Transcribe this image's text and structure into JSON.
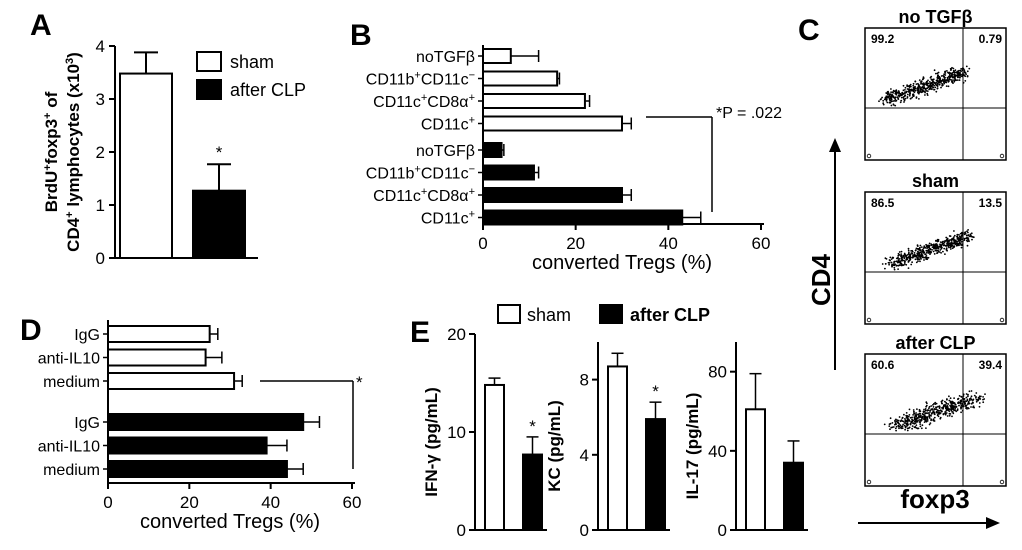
{
  "chart_data": [
    {
      "panel": "A",
      "type": "bar",
      "categories": [
        "sham",
        "after CLP"
      ],
      "values": [
        3.48,
        1.27
      ],
      "errors": [
        0.4,
        0.5
      ],
      "ylabel_line1": "BrdU+foxp3+ of",
      "ylabel_line2": "CD4+ lymphocytes (x10³)",
      "ylim": [
        0,
        4
      ],
      "yticks": [
        "0",
        "1",
        "2",
        "3",
        "4"
      ],
      "significance": "*",
      "legend": [
        "sham",
        "after CLP"
      ],
      "legend_position": "top-right",
      "colors": [
        "#ffffff",
        "#000000"
      ]
    },
    {
      "panel": "B",
      "type": "bar",
      "orientation": "horizontal",
      "categories": [
        "noTGFβ",
        "CD11b+CD11c−",
        "CD11c+CD8α+",
        "CD11c+"
      ],
      "series": [
        {
          "name": "sham",
          "values": [
            6,
            16,
            22,
            30
          ],
          "errors": [
            6,
            0.5,
            1,
            2
          ]
        },
        {
          "name": "after CLP",
          "values": [
            4,
            11,
            30,
            43
          ],
          "errors": [
            0.5,
            1,
            2,
            4
          ]
        }
      ],
      "xlabel": "converted Tregs (%)",
      "xlim": [
        0,
        60
      ],
      "xticks": [
        "0",
        "20",
        "40",
        "60"
      ],
      "annotation": "*P = .022"
    },
    {
      "panel": "C",
      "type": "scatter",
      "plots": [
        {
          "title": "no TGFβ",
          "upper_left": "99.2",
          "upper_right": "0.79"
        },
        {
          "title": "sham",
          "upper_left": "86.5",
          "upper_right": "13.5"
        },
        {
          "title": "after CLP",
          "upper_left": "60.6",
          "upper_right": "39.4"
        }
      ],
      "ylabel": "CD4",
      "xlabel": "foxp3"
    },
    {
      "panel": "D",
      "type": "bar",
      "orientation": "horizontal",
      "categories": [
        "IgG",
        "anti-IL10",
        "medium"
      ],
      "series": [
        {
          "name": "sham",
          "values": [
            25,
            24,
            31
          ],
          "errors": [
            2,
            4,
            2
          ]
        },
        {
          "name": "after CLP",
          "values": [
            48,
            39,
            44
          ],
          "errors": [
            4,
            5,
            4
          ]
        }
      ],
      "xlabel": "converted Tregs (%)",
      "xlim": [
        0,
        60
      ],
      "xticks": [
        "0",
        "20",
        "40",
        "60"
      ],
      "significance": "*"
    },
    {
      "panel": "E",
      "type": "bar",
      "legend": [
        "sham",
        "after CLP"
      ],
      "legend_position": "top",
      "subplots": [
        {
          "ylabel": "IFN-γ (pg/mL)",
          "ylim": [
            0,
            20
          ],
          "yticks": [
            "0",
            "10",
            "20"
          ],
          "values": [
            14.8,
            7.7
          ],
          "errors": [
            0.7,
            1.8
          ],
          "significance": "*"
        },
        {
          "ylabel": "KC (pg/mL)",
          "ylim": [
            0,
            10
          ],
          "yticks": [
            "0",
            "4",
            "8"
          ],
          "values": [
            8.7,
            5.9
          ],
          "errors": [
            0.7,
            0.9
          ],
          "significance": "*"
        },
        {
          "ylabel": "IL-17 (pg/mL)",
          "ylim": [
            0,
            95
          ],
          "yticks": [
            "0",
            "40",
            "80"
          ],
          "values": [
            61,
            34
          ],
          "errors": [
            18,
            11
          ],
          "significance": ""
        }
      ]
    }
  ]
}
